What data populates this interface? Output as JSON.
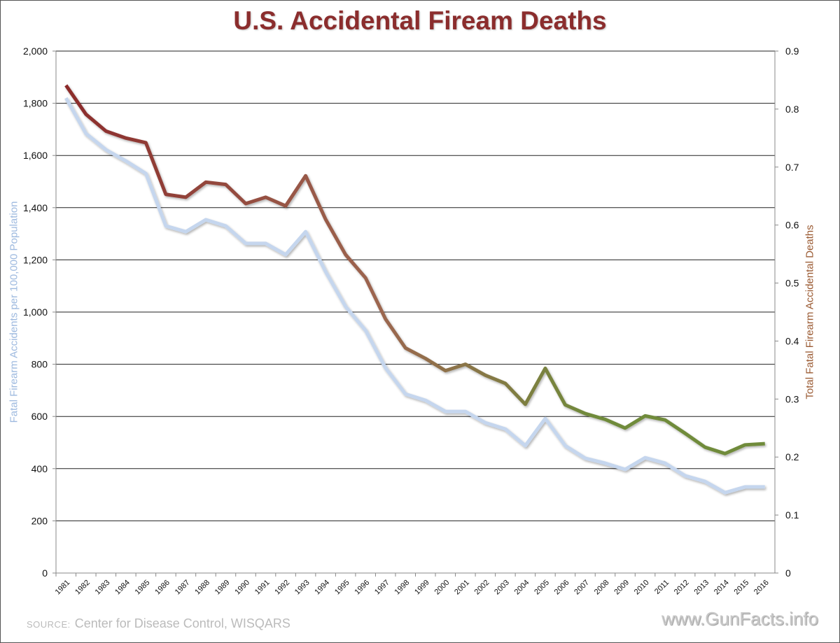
{
  "chart_data": {
    "type": "line",
    "title": "U.S. Accidental Fiream Deaths",
    "ylabel": "Fatal Firearm Accidents per 100,000 Population",
    "y2label": "Total Fatal Firearm Accidental Deaths",
    "ylim": [
      0,
      2000
    ],
    "y2lim": [
      0,
      0.9
    ],
    "yticks": [
      "0",
      "200",
      "400",
      "600",
      "800",
      "1,000",
      "1,200",
      "1,400",
      "1,600",
      "1,800",
      "2,000"
    ],
    "y2ticks": [
      "0",
      "0.1",
      "0.2",
      "0.3",
      "0.4",
      "0.5",
      "0.6",
      "0.7",
      "0.8",
      "0.9"
    ],
    "grid": true,
    "categories": [
      "1981",
      "1982",
      "1983",
      "1984",
      "1985",
      "1986",
      "1987",
      "1988",
      "1989",
      "1990",
      "1991",
      "1992",
      "1993",
      "1994",
      "1995",
      "1996",
      "1997",
      "1998",
      "1999",
      "2000",
      "2001",
      "2002",
      "2003",
      "2004",
      "2005",
      "2006",
      "2007",
      "2008",
      "2009",
      "2010",
      "2011",
      "2012",
      "2013",
      "2014",
      "2015",
      "2016"
    ],
    "series": [
      {
        "name": "Left axis series",
        "axis": "left",
        "color": "#c5d6ee",
        "values": [
          1820,
          1684,
          1622,
          1579,
          1531,
          1330,
          1308,
          1354,
          1330,
          1263,
          1263,
          1220,
          1308,
          1155,
          1021,
          930,
          786,
          686,
          662,
          619,
          619,
          576,
          552,
          488,
          592,
          488,
          440,
          421,
          397,
          442,
          421,
          373,
          351,
          308,
          330,
          330
        ]
      },
      {
        "name": "Right axis series",
        "axis": "right",
        "colors": [
          "#8b2a2a",
          "#9c6650",
          "#6f8b3a"
        ],
        "values": [
          0.841,
          0.791,
          0.762,
          0.75,
          0.742,
          0.653,
          0.648,
          0.674,
          0.67,
          0.637,
          0.648,
          0.633,
          0.685,
          0.61,
          0.549,
          0.509,
          0.438,
          0.388,
          0.37,
          0.349,
          0.36,
          0.341,
          0.327,
          0.291,
          0.353,
          0.29,
          0.275,
          0.265,
          0.25,
          0.271,
          0.264,
          0.241,
          0.217,
          0.206,
          0.221,
          0.223
        ]
      }
    ]
  },
  "footer": {
    "source_label": "SOURCE:",
    "source_text": "Center for Disease Control, WISQARS",
    "brand": "www.GunFacts.info"
  }
}
